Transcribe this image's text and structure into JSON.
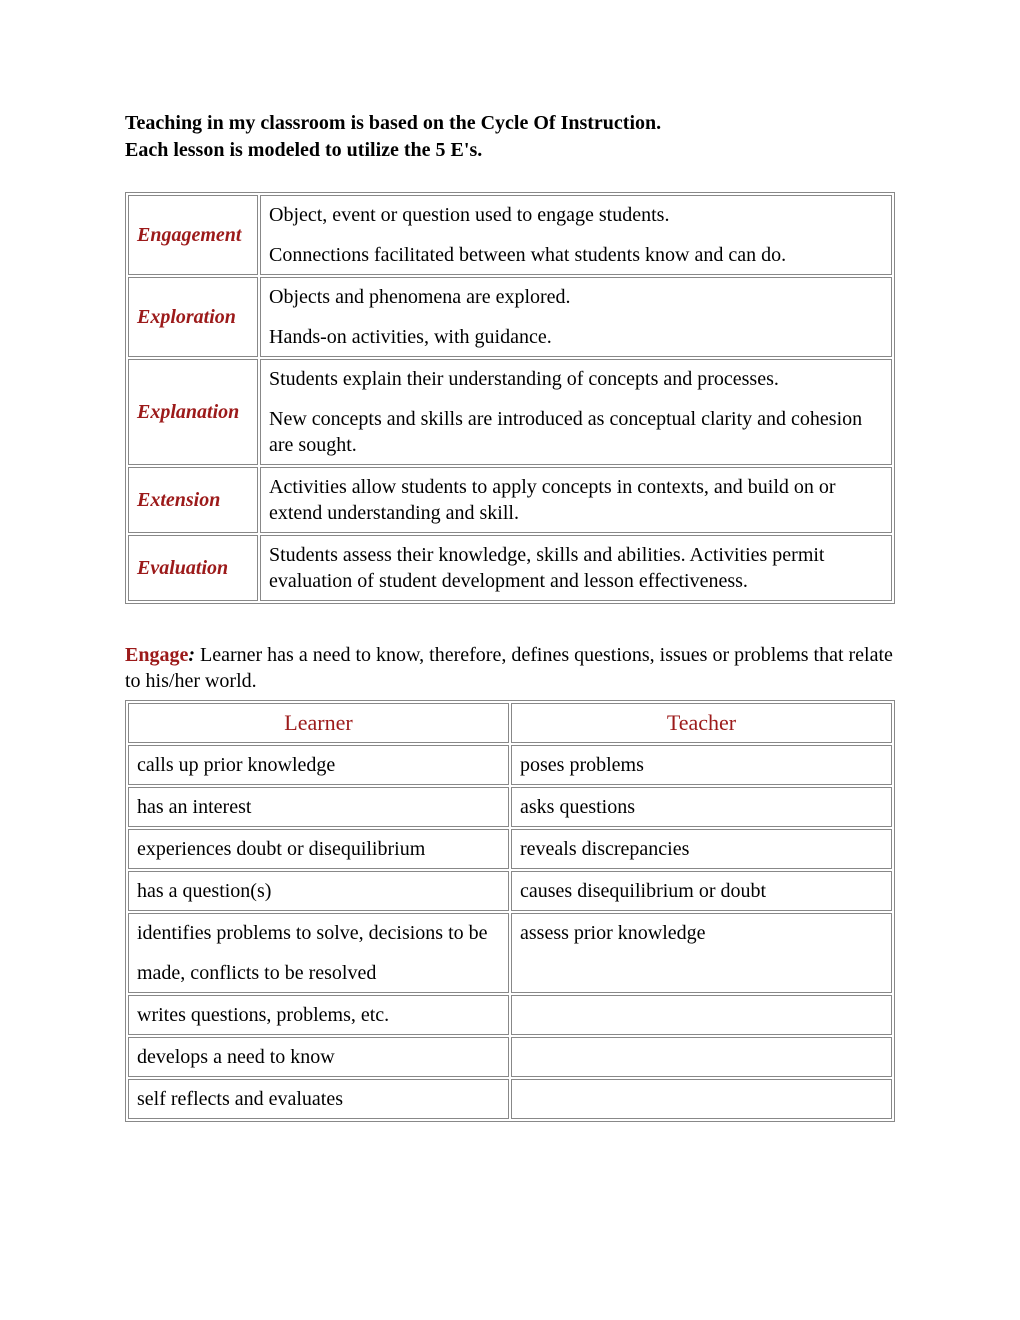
{
  "intro": {
    "line1": "Teaching in my classroom is based on the Cycle Of Instruction.",
    "line2": "Each lesson is modeled to utilize the 5 E's."
  },
  "colors": {
    "accent": "#9c1a1a",
    "text": "#000000",
    "border": "#888888",
    "background": "#ffffff"
  },
  "typography": {
    "font_family": "Times New Roman",
    "body_fontsize_pt": 15,
    "header_fontsize_pt": 17
  },
  "fiveE": {
    "rows": [
      {
        "label": "Engagement",
        "desc_p1": "Object, event or question used to engage students.",
        "desc_p2": "Connections facilitated between what students know and can do."
      },
      {
        "label": "Exploration",
        "desc_p1": "Objects and phenomena are explored.",
        "desc_p2": "Hands-on activities, with guidance."
      },
      {
        "label": "Explanation",
        "desc_p1": "Students explain their understanding of concepts and processes.",
        "desc_p2": "New concepts and skills are introduced as conceptual clarity and cohesion are sought."
      },
      {
        "label": "Extension",
        "desc_p1": "Activities allow students to apply concepts in contexts, and build on or extend understanding and skill.",
        "desc_p2": ""
      },
      {
        "label": "Evaluation",
        "desc_p1": "Students assess their knowledge, skills and abilities. Activities permit evaluation of student development and lesson effectiveness.",
        "desc_p2": ""
      }
    ]
  },
  "engage": {
    "keyword": "Engage",
    "colon": ":",
    "text": " Learner has a need to know, therefore, defines questions, issues or problems that relate to his/her world.",
    "headers": {
      "learner": "Learner",
      "teacher": "Teacher"
    },
    "rows": [
      {
        "learner": "calls up prior knowledge",
        "teacher": "poses problems"
      },
      {
        "learner": "has an interest",
        "teacher": "asks questions"
      },
      {
        "learner": "experiences doubt or disequilibrium",
        "teacher": "reveals discrepancies"
      },
      {
        "learner": "has a question(s)",
        "teacher": "causes disequilibrium or doubt"
      },
      {
        "learner_p1": "identifies problems to solve, decisions to be",
        "learner_p2": "made, conflicts to be resolved",
        "teacher": "assess prior knowledge",
        "multi": true
      },
      {
        "learner": "writes questions, problems, etc.",
        "teacher": ""
      },
      {
        "learner": "develops a need to know",
        "teacher": ""
      },
      {
        "learner": "self reflects and evaluates",
        "teacher": ""
      }
    ]
  }
}
